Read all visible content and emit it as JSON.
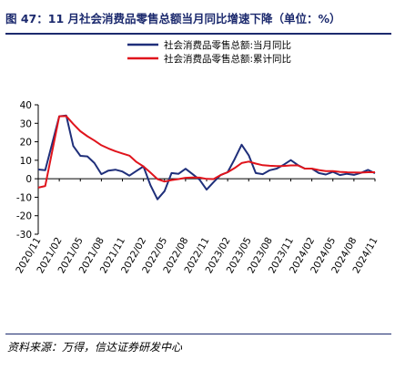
{
  "title": "图 47：11 月社会消费品零售总额当月同比增速下降（单位：%）",
  "source": "资料来源：万得，信达证券研发中心",
  "colors": {
    "monthly": "#1f2f7a",
    "cumulative": "#e0141c",
    "title": "#1c2a6e"
  },
  "chart_data": {
    "type": "line",
    "title": "",
    "xlabel": "",
    "ylabel": "",
    "ylim": [
      -30,
      40
    ],
    "yticks": [
      -30,
      -20,
      -10,
      0,
      10,
      20,
      30,
      40
    ],
    "grid": false,
    "legend_position": "top-right",
    "x": [
      "2020/11",
      "2020/12",
      "2021/01",
      "2021/02",
      "2021/03",
      "2021/04",
      "2021/05",
      "2021/06",
      "2021/07",
      "2021/08",
      "2021/09",
      "2021/10",
      "2021/11",
      "2021/12",
      "2022/01",
      "2022/02",
      "2022/03",
      "2022/04",
      "2022/05",
      "2022/06",
      "2022/07",
      "2022/08",
      "2022/09",
      "2022/10",
      "2022/11",
      "2022/12",
      "2023/01",
      "2023/02",
      "2023/03",
      "2023/04",
      "2023/05",
      "2023/06",
      "2023/07",
      "2023/08",
      "2023/09",
      "2023/10",
      "2023/11",
      "2023/12",
      "2024/01",
      "2024/02",
      "2024/03",
      "2024/04",
      "2024/05",
      "2024/06",
      "2024/07",
      "2024/08",
      "2024/09",
      "2024/10",
      "2024/11"
    ],
    "xtick_labels": [
      "2020/11",
      "2021/02",
      "2021/05",
      "2021/08",
      "2021/11",
      "2022/02",
      "2022/05",
      "2022/08",
      "2022/11",
      "2023/02",
      "2023/05",
      "2023/08",
      "2023/11",
      "2024/02",
      "2024/05",
      "2024/08",
      "2024/11"
    ],
    "series": [
      {
        "name": "社会消费品零售总额:当月同比",
        "color": "#1f2f7a",
        "values": [
          5.0,
          4.6,
          null,
          33.8,
          34.2,
          17.7,
          12.4,
          12.1,
          8.5,
          2.5,
          4.4,
          4.9,
          3.9,
          1.7,
          4.2,
          6.7,
          -3.5,
          -11.1,
          -6.7,
          3.1,
          2.7,
          5.4,
          2.5,
          -0.5,
          -5.9,
          -1.8,
          2.0,
          3.5,
          10.6,
          18.4,
          12.7,
          3.1,
          2.5,
          4.6,
          5.5,
          7.6,
          10.1,
          7.4,
          5.5,
          5.5,
          3.1,
          2.3,
          3.7,
          2.0,
          2.7,
          2.1,
          3.2,
          4.8,
          3.0
        ]
      },
      {
        "name": "社会消费品零售总额:累计同比",
        "color": "#e0141c",
        "values": [
          -4.8,
          -3.9,
          null,
          33.8,
          33.9,
          29.6,
          25.7,
          23.0,
          20.7,
          18.1,
          16.4,
          14.9,
          13.7,
          12.5,
          9.1,
          6.7,
          3.3,
          -0.2,
          -1.5,
          -0.7,
          -0.2,
          0.5,
          0.7,
          0.6,
          -0.1,
          -0.2,
          2.0,
          3.5,
          5.8,
          8.5,
          9.3,
          8.2,
          7.3,
          7.0,
          6.8,
          6.9,
          7.2,
          7.2,
          5.5,
          5.5,
          4.7,
          4.1,
          4.1,
          3.7,
          3.5,
          3.4,
          3.3,
          3.5,
          3.5
        ]
      }
    ]
  }
}
